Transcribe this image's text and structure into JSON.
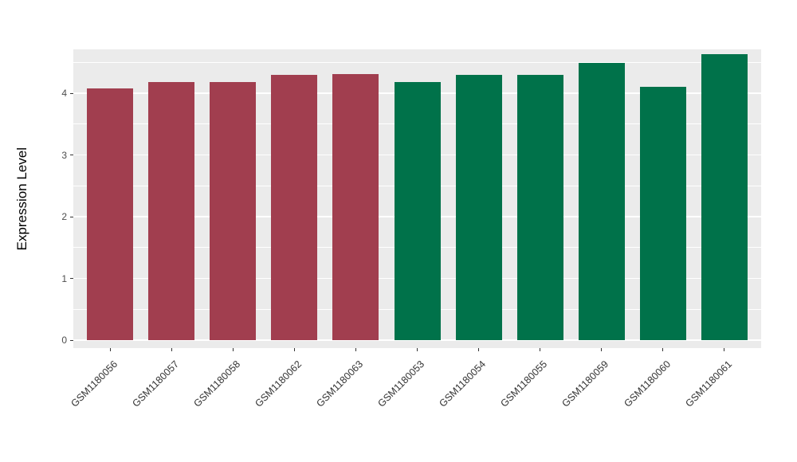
{
  "figure": {
    "background": "#FFFFFF",
    "panel_background": "#EBEBEB",
    "gridline_color": "#FFFFFF",
    "axis_text_color": "#4D4D4D",
    "axis_title_color": "#000000"
  },
  "chart_data": {
    "type": "bar",
    "title": "",
    "xlabel": "",
    "ylabel": "Expression Level",
    "ylim": [
      0,
      4.72
    ],
    "yticks": [
      0,
      1,
      2,
      3,
      4
    ],
    "grid": true,
    "legend": "none",
    "categories": [
      "GSM1180056",
      "GSM1180057",
      "GSM1180058",
      "GSM1180062",
      "GSM1180063",
      "GSM1180053",
      "GSM1180054",
      "GSM1180055",
      "GSM1180059",
      "GSM1180060",
      "GSM1180061"
    ],
    "values": [
      4.08,
      4.18,
      4.18,
      4.3,
      4.31,
      4.18,
      4.3,
      4.3,
      4.49,
      4.1,
      4.63
    ],
    "bar_colors": [
      "#A13E4F",
      "#A13E4F",
      "#A13E4F",
      "#A13E4F",
      "#A13E4F",
      "#00724A",
      "#00724A",
      "#00724A",
      "#00724A",
      "#00724A",
      "#00724A"
    ],
    "series_groups": [
      {
        "color": "#A13E4F",
        "categories": [
          "GSM1180056",
          "GSM1180057",
          "GSM1180058",
          "GSM1180062",
          "GSM1180063"
        ]
      },
      {
        "color": "#00724A",
        "categories": [
          "GSM1180053",
          "GSM1180054",
          "GSM1180055",
          "GSM1180059",
          "GSM1180060",
          "GSM1180061"
        ]
      }
    ]
  }
}
